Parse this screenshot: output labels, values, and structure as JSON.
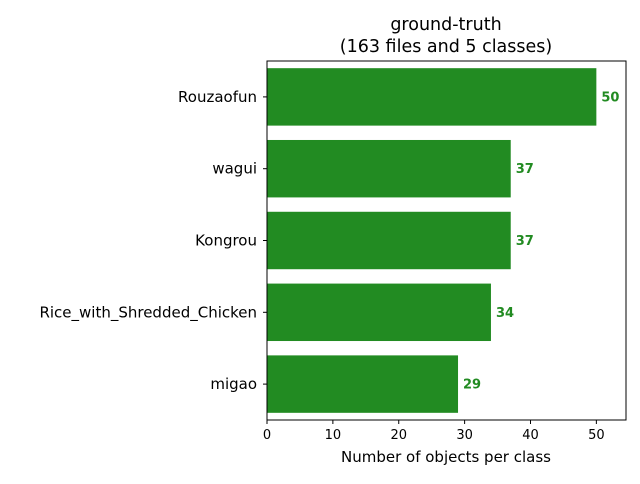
{
  "chart_data": {
    "type": "bar",
    "orientation": "horizontal",
    "title_line1": "ground-truth",
    "title_line2": "(163 files and 5 classes)",
    "xlabel": "Number of objects per class",
    "ylabel": "",
    "categories": [
      "Rouzaofun",
      "wagui",
      "Kongrou",
      "Rice_with_Shredded_Chicken",
      "migao"
    ],
    "values": [
      50,
      37,
      37,
      34,
      29
    ],
    "value_labels": [
      "50",
      "37",
      "37",
      "34",
      "29"
    ],
    "xlim": [
      0,
      54.5
    ],
    "xticks": [
      0,
      10,
      20,
      30,
      40,
      50
    ],
    "xtick_labels": [
      "0",
      "10",
      "20",
      "30",
      "40",
      "50"
    ],
    "grid": false,
    "bar_color": "#228b22",
    "label_color": "#228b22"
  }
}
